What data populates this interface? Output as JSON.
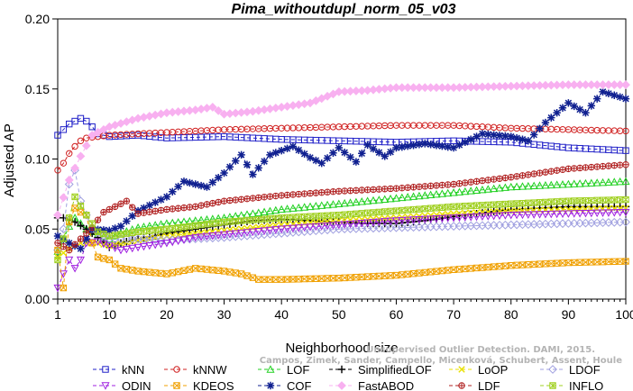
{
  "chart_data": {
    "type": "line",
    "title": "Pima_withoutdupl_norm_05_v03",
    "xlabel": "Neighborhood size",
    "ylabel": "Adjusted AP",
    "xlim": [
      1,
      100
    ],
    "ylim": [
      0,
      0.2
    ],
    "x_ticks": [
      1,
      10,
      20,
      30,
      40,
      50,
      60,
      70,
      80,
      90,
      100
    ],
    "y_ticks": [
      "0.00",
      "0.05",
      "0.10",
      "0.15",
      "0.20"
    ],
    "grid": false,
    "legend_position": "bottom",
    "watermark": [
      "Unsupervised Outlier Detection. DAMI, 2015.",
      "Campos, Zimek, Sander, Campello, Micenková, Schubert, Assent, Houle"
    ],
    "series": [
      {
        "name": "kNN",
        "color": "#2020c8",
        "marker": "square",
        "dash": "4,3",
        "points": [
          [
            1,
            0.117
          ],
          [
            2,
            0.121
          ],
          [
            3,
            0.125
          ],
          [
            4,
            0.127
          ],
          [
            5,
            0.129
          ],
          [
            6,
            0.127
          ],
          [
            7,
            0.123
          ],
          [
            8,
            0.118
          ],
          [
            10,
            0.116
          ],
          [
            15,
            0.117
          ],
          [
            20,
            0.115
          ],
          [
            30,
            0.116
          ],
          [
            40,
            0.114
          ],
          [
            50,
            0.113
          ],
          [
            60,
            0.112
          ],
          [
            70,
            0.113
          ],
          [
            80,
            0.112
          ],
          [
            90,
            0.108
          ],
          [
            100,
            0.106
          ]
        ]
      },
      {
        "name": "kNNW",
        "color": "#d02020",
        "marker": "circle",
        "dash": "4,3",
        "points": [
          [
            1,
            0.092
          ],
          [
            2,
            0.097
          ],
          [
            3,
            0.104
          ],
          [
            4,
            0.109
          ],
          [
            5,
            0.113
          ],
          [
            6,
            0.115
          ],
          [
            8,
            0.116
          ],
          [
            10,
            0.117
          ],
          [
            20,
            0.119
          ],
          [
            30,
            0.121
          ],
          [
            40,
            0.122
          ],
          [
            50,
            0.123
          ],
          [
            60,
            0.124
          ],
          [
            70,
            0.124
          ],
          [
            80,
            0.122
          ],
          [
            90,
            0.121
          ],
          [
            100,
            0.12
          ]
        ]
      },
      {
        "name": "LOF",
        "color": "#20d020",
        "marker": "triangle",
        "dash": "4,3",
        "points": [
          [
            1,
            0.034
          ],
          [
            3,
            0.052
          ],
          [
            4,
            0.058
          ],
          [
            6,
            0.05
          ],
          [
            8,
            0.046
          ],
          [
            10,
            0.043
          ],
          [
            12,
            0.047
          ],
          [
            15,
            0.051
          ],
          [
            20,
            0.054
          ],
          [
            30,
            0.058
          ],
          [
            40,
            0.064
          ],
          [
            50,
            0.068
          ],
          [
            60,
            0.072
          ],
          [
            70,
            0.076
          ],
          [
            80,
            0.08
          ],
          [
            90,
            0.082
          ],
          [
            100,
            0.084
          ]
        ]
      },
      {
        "name": "SimplifiedLOF",
        "color": "#000000",
        "marker": "plus",
        "dash": "4,3",
        "points": [
          [
            1,
            0.058
          ],
          [
            2,
            0.058
          ],
          [
            4,
            0.055
          ],
          [
            6,
            0.05
          ],
          [
            8,
            0.044
          ],
          [
            10,
            0.037
          ],
          [
            12,
            0.04
          ],
          [
            15,
            0.043
          ],
          [
            20,
            0.047
          ],
          [
            25,
            0.05
          ],
          [
            30,
            0.053
          ],
          [
            35,
            0.056
          ],
          [
            40,
            0.057
          ],
          [
            50,
            0.055
          ],
          [
            55,
            0.054
          ],
          [
            60,
            0.054
          ],
          [
            65,
            0.056
          ],
          [
            70,
            0.059
          ],
          [
            80,
            0.064
          ],
          [
            90,
            0.066
          ],
          [
            100,
            0.066
          ]
        ]
      },
      {
        "name": "LoOP",
        "color": "#e8e000",
        "marker": "cross",
        "dash": "4,3",
        "points": [
          [
            1,
            0.03
          ],
          [
            3,
            0.036
          ],
          [
            5,
            0.04
          ],
          [
            8,
            0.04
          ],
          [
            10,
            0.038
          ],
          [
            15,
            0.042
          ],
          [
            20,
            0.045
          ],
          [
            30,
            0.049
          ],
          [
            40,
            0.053
          ],
          [
            50,
            0.056
          ],
          [
            60,
            0.058
          ],
          [
            70,
            0.061
          ],
          [
            80,
            0.063
          ],
          [
            90,
            0.064
          ],
          [
            100,
            0.065
          ]
        ]
      },
      {
        "name": "LDOF",
        "color": "#a0a0e0",
        "marker": "diamond",
        "dash": "4,3",
        "points": [
          [
            1,
            0.035
          ],
          [
            2,
            0.05
          ],
          [
            3,
            0.082
          ],
          [
            4,
            0.092
          ],
          [
            5,
            0.07
          ],
          [
            7,
            0.05
          ],
          [
            10,
            0.043
          ],
          [
            15,
            0.043
          ],
          [
            20,
            0.042
          ],
          [
            30,
            0.044
          ],
          [
            40,
            0.047
          ],
          [
            50,
            0.05
          ],
          [
            60,
            0.051
          ],
          [
            70,
            0.052
          ],
          [
            80,
            0.053
          ],
          [
            90,
            0.054
          ],
          [
            100,
            0.055
          ]
        ]
      },
      {
        "name": "ODIN",
        "color": "#a020e0",
        "marker": "tri-down",
        "dash": "4,3",
        "points": [
          [
            1,
            0.008
          ],
          [
            2,
            0.018
          ],
          [
            3,
            0.028
          ],
          [
            4,
            0.022
          ],
          [
            5,
            0.028
          ],
          [
            6,
            0.04
          ],
          [
            8,
            0.041
          ],
          [
            10,
            0.038
          ],
          [
            12,
            0.035
          ],
          [
            15,
            0.037
          ],
          [
            20,
            0.04
          ],
          [
            25,
            0.044
          ],
          [
            30,
            0.046
          ],
          [
            40,
            0.05
          ],
          [
            50,
            0.053
          ],
          [
            60,
            0.056
          ],
          [
            70,
            0.058
          ],
          [
            80,
            0.06
          ],
          [
            90,
            0.061
          ],
          [
            100,
            0.062
          ]
        ]
      },
      {
        "name": "KDEOS",
        "color": "#f0a000",
        "marker": "boxx",
        "dash": "4,3",
        "points": [
          [
            1,
            0.035
          ],
          [
            2,
            0.008
          ],
          [
            3,
            0.055
          ],
          [
            4,
            0.065
          ],
          [
            5,
            0.062
          ],
          [
            6,
            0.06
          ],
          [
            7,
            0.04
          ],
          [
            8,
            0.03
          ],
          [
            10,
            0.028
          ],
          [
            12,
            0.022
          ],
          [
            15,
            0.02
          ],
          [
            20,
            0.018
          ],
          [
            25,
            0.022
          ],
          [
            30,
            0.02
          ],
          [
            33,
            0.018
          ],
          [
            36,
            0.014
          ],
          [
            40,
            0.014
          ],
          [
            50,
            0.015
          ],
          [
            60,
            0.017
          ],
          [
            70,
            0.021
          ],
          [
            80,
            0.024
          ],
          [
            90,
            0.026
          ],
          [
            100,
            0.027
          ]
        ]
      },
      {
        "name": "COF",
        "color": "#102090",
        "marker": "star",
        "dash": "4,3",
        "points": [
          [
            1,
            0.045
          ],
          [
            3,
            0.04
          ],
          [
            5,
            0.036
          ],
          [
            7,
            0.05
          ],
          [
            10,
            0.049
          ],
          [
            12,
            0.052
          ],
          [
            15,
            0.063
          ],
          [
            20,
            0.073
          ],
          [
            23,
            0.084
          ],
          [
            27,
            0.08
          ],
          [
            30,
            0.09
          ],
          [
            33,
            0.103
          ],
          [
            35,
            0.089
          ],
          [
            38,
            0.103
          ],
          [
            42,
            0.109
          ],
          [
            45,
            0.101
          ],
          [
            47,
            0.097
          ],
          [
            50,
            0.108
          ],
          [
            53,
            0.098
          ],
          [
            55,
            0.11
          ],
          [
            58,
            0.102
          ],
          [
            60,
            0.108
          ],
          [
            65,
            0.111
          ],
          [
            70,
            0.108
          ],
          [
            75,
            0.118
          ],
          [
            80,
            0.116
          ],
          [
            83,
            0.113
          ],
          [
            86,
            0.126
          ],
          [
            90,
            0.14
          ],
          [
            93,
            0.133
          ],
          [
            96,
            0.148
          ],
          [
            100,
            0.143
          ]
        ]
      },
      {
        "name": "FastABOD",
        "color": "#f8b0f0",
        "marker": "diamond-fill",
        "dash": "4,3",
        "points": [
          [
            1,
            0.06
          ],
          [
            3,
            0.085
          ],
          [
            5,
            0.102
          ],
          [
            7,
            0.117
          ],
          [
            10,
            0.123
          ],
          [
            15,
            0.129
          ],
          [
            20,
            0.133
          ],
          [
            25,
            0.135
          ],
          [
            28,
            0.137
          ],
          [
            30,
            0.132
          ],
          [
            35,
            0.134
          ],
          [
            40,
            0.137
          ],
          [
            45,
            0.14
          ],
          [
            50,
            0.148
          ],
          [
            55,
            0.149
          ],
          [
            60,
            0.151
          ],
          [
            70,
            0.151
          ],
          [
            80,
            0.152
          ],
          [
            90,
            0.153
          ],
          [
            100,
            0.153
          ]
        ]
      },
      {
        "name": "LDF",
        "color": "#b02020",
        "marker": "circle-plus",
        "dash": "4,3",
        "points": [
          [
            1,
            0.04
          ],
          [
            3,
            0.035
          ],
          [
            5,
            0.043
          ],
          [
            7,
            0.051
          ],
          [
            9,
            0.062
          ],
          [
            11,
            0.066
          ],
          [
            13,
            0.07
          ],
          [
            15,
            0.061
          ],
          [
            20,
            0.064
          ],
          [
            25,
            0.066
          ],
          [
            30,
            0.07
          ],
          [
            40,
            0.074
          ],
          [
            50,
            0.077
          ],
          [
            60,
            0.079
          ],
          [
            70,
            0.082
          ],
          [
            80,
            0.087
          ],
          [
            90,
            0.093
          ],
          [
            100,
            0.096
          ]
        ]
      },
      {
        "name": "INFLO",
        "color": "#a0d020",
        "marker": "asterisk-box",
        "dash": "4,3",
        "points": [
          [
            1,
            0.028
          ],
          [
            3,
            0.058
          ],
          [
            4,
            0.073
          ],
          [
            6,
            0.06
          ],
          [
            8,
            0.048
          ],
          [
            10,
            0.045
          ],
          [
            15,
            0.048
          ],
          [
            20,
            0.05
          ],
          [
            30,
            0.055
          ],
          [
            40,
            0.058
          ],
          [
            50,
            0.06
          ],
          [
            60,
            0.063
          ],
          [
            70,
            0.066
          ],
          [
            80,
            0.068
          ],
          [
            90,
            0.07
          ],
          [
            100,
            0.071
          ]
        ]
      }
    ]
  }
}
